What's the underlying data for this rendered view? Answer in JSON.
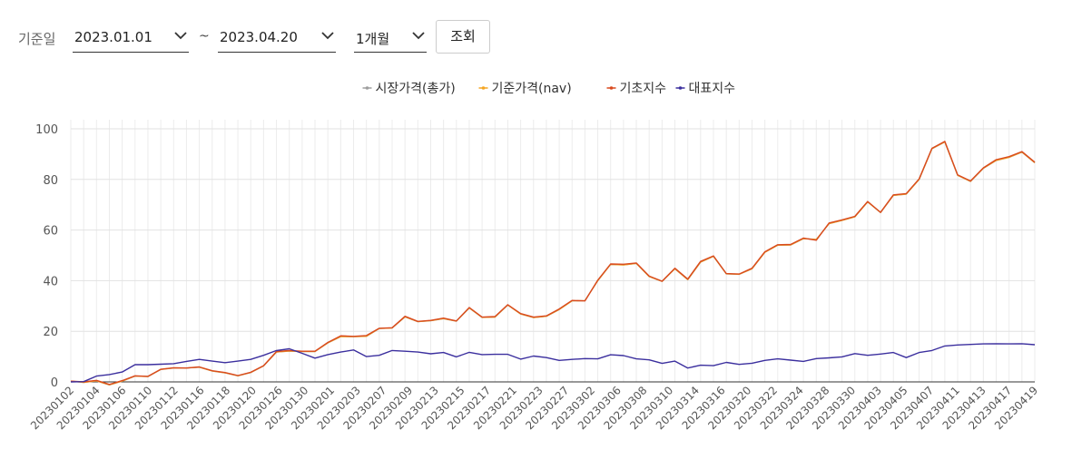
{
  "filters": {
    "date_label": "기준일",
    "start_date": "2023.01.01",
    "tilde": "~",
    "end_date": "2023.04.20",
    "period": "1개월",
    "search_button": "조회"
  },
  "chart_data": {
    "type": "line",
    "legend_position": "top-center",
    "grid": true,
    "ylim": [
      0,
      100
    ],
    "yticks": [
      0,
      20,
      40,
      60,
      80,
      100
    ],
    "x_ticks": [
      "20230102",
      "20230104",
      "20230106",
      "20230110",
      "20230112",
      "20230116",
      "20230118",
      "20230120",
      "20230126",
      "20230130",
      "20230201",
      "20230203",
      "20230207",
      "20230209",
      "20230213",
      "20230215",
      "20230217",
      "20230221",
      "20230223",
      "20230227",
      "20230302",
      "20230306",
      "20230308",
      "20230310",
      "20230314",
      "20230316",
      "20230320",
      "20230322",
      "20230324",
      "20230328",
      "20230330",
      "20230403",
      "20230405",
      "20230407",
      "20230411",
      "20230413",
      "20230417",
      "20230419"
    ],
    "series": [
      {
        "name": "시장가격(총가)",
        "color": "#9e9e9e",
        "values": [
          0.3,
          -0.2,
          0.4,
          -1.2,
          0.3,
          2.3,
          2.1,
          4.9,
          5.5,
          5.5,
          5.8,
          4.3,
          3.6,
          2.4,
          3.7,
          6.3,
          11.8,
          12.2,
          12.0,
          12.0,
          15.4,
          17.9,
          17.9,
          18.0,
          21.1,
          21.3,
          25.7,
          23.8,
          24.2,
          25.0,
          24.0,
          29.2,
          25.5,
          25.6,
          30.4,
          26.8,
          25.4,
          25.9,
          28.6,
          32.0,
          32.1,
          40.0,
          46.4,
          46.2,
          46.8,
          41.6,
          39.7,
          44.7,
          40.4,
          47.3,
          49.6,
          42.7,
          42.5,
          44.7,
          51.2,
          54.0,
          54.1,
          56.6,
          56.3,
          62.5,
          63.8,
          65.2,
          71.1,
          66.9,
          73.7,
          74.2,
          80.0,
          92.1,
          94.8,
          81.6,
          79.2,
          84.4,
          87.5,
          88.7,
          90.8,
          86.6
        ]
      },
      {
        "name": "기준가격(nav)",
        "color": "#f5a623",
        "values": [
          0.3,
          -0.2,
          0.4,
          -1.2,
          0.3,
          2.3,
          2.1,
          4.9,
          5.5,
          5.5,
          5.8,
          4.3,
          3.6,
          2.4,
          3.7,
          6.3,
          11.8,
          12.2,
          12.0,
          12.0,
          15.4,
          17.9,
          17.9,
          18.0,
          21.1,
          21.3,
          25.7,
          23.8,
          24.2,
          25.0,
          24.0,
          29.2,
          25.5,
          25.6,
          30.4,
          26.8,
          25.4,
          25.9,
          28.6,
          32.0,
          32.1,
          40.0,
          46.4,
          46.2,
          46.8,
          41.6,
          39.7,
          44.7,
          40.4,
          47.3,
          49.6,
          42.7,
          42.5,
          44.7,
          51.2,
          54.0,
          54.1,
          56.6,
          56.3,
          62.5,
          63.8,
          65.2,
          71.1,
          66.9,
          73.7,
          74.2,
          80.0,
          92.1,
          94.8,
          81.6,
          79.2,
          84.4,
          87.5,
          88.7,
          90.8,
          86.6
        ]
      },
      {
        "name": "기초지수",
        "color": "#d94a1e",
        "values": [
          0.3,
          0.0,
          0.6,
          -1.0,
          0.5,
          2.4,
          2.2,
          5.0,
          5.6,
          5.5,
          5.9,
          4.4,
          3.7,
          2.5,
          3.8,
          6.4,
          12.0,
          12.4,
          12.1,
          12.1,
          15.6,
          18.2,
          18.0,
          18.3,
          21.2,
          21.4,
          25.9,
          23.9,
          24.3,
          25.2,
          24.1,
          29.4,
          25.6,
          25.8,
          30.5,
          27.0,
          25.6,
          26.1,
          28.8,
          32.2,
          32.0,
          40.2,
          46.6,
          46.5,
          47.0,
          41.8,
          39.8,
          44.9,
          40.6,
          47.6,
          49.8,
          42.8,
          42.6,
          44.9,
          51.4,
          54.2,
          54.3,
          56.8,
          56.0,
          62.8,
          64.0,
          65.4,
          71.3,
          67.0,
          73.9,
          74.4,
          80.2,
          92.3,
          95.0,
          81.8,
          79.4,
          84.6,
          87.8,
          89.0,
          91.0,
          86.8
        ]
      },
      {
        "name": "대표지수",
        "color": "#3b2f9e",
        "values": [
          0.0,
          0.1,
          2.3,
          2.9,
          3.9,
          6.8,
          6.8,
          7.0,
          7.2,
          8.1,
          8.9,
          8.2,
          7.6,
          8.2,
          8.9,
          10.5,
          12.4,
          13.1,
          11.3,
          9.4,
          10.8,
          11.8,
          12.6,
          10.0,
          10.5,
          12.4,
          12.1,
          11.8,
          11.1,
          11.6,
          9.9,
          11.7,
          10.8,
          10.9,
          10.9,
          9.0,
          10.2,
          9.6,
          8.5,
          8.9,
          9.2,
          9.1,
          10.7,
          10.4,
          9.1,
          8.7,
          7.3,
          8.2,
          5.5,
          6.6,
          6.4,
          7.7,
          6.9,
          7.4,
          8.5,
          9.1,
          8.6,
          8.1,
          9.2,
          9.5,
          9.9,
          11.2,
          10.5,
          11.0,
          11.6,
          9.6,
          11.6,
          12.4,
          14.2,
          14.6,
          14.8,
          15.0,
          15.1,
          15.0,
          15.1,
          14.7
        ]
      }
    ]
  }
}
